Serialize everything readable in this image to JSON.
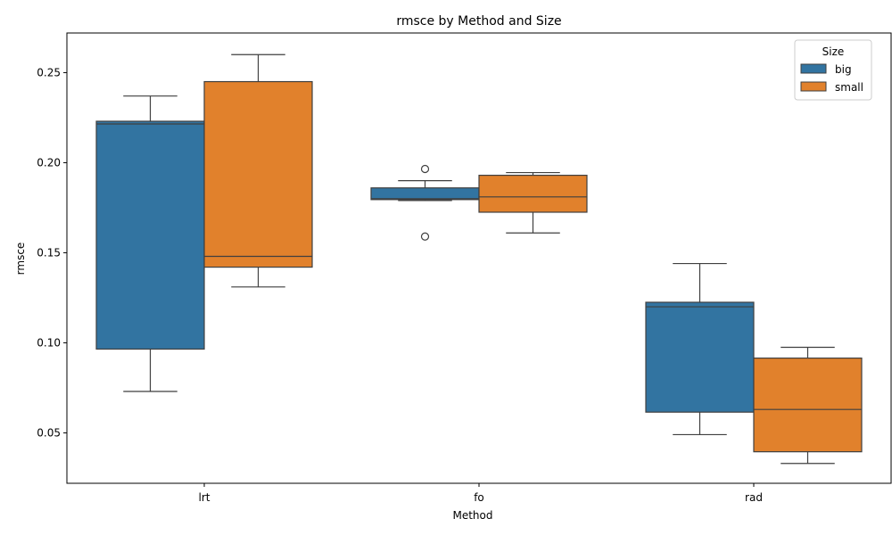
{
  "chart_data": {
    "type": "box",
    "title": "rmsce by Method and Size",
    "xlabel": "Method",
    "ylabel": "rmsce",
    "categories": [
      "lrt",
      "fo",
      "rad"
    ],
    "ylim": [
      0.022,
      0.272
    ],
    "yticks": [
      0.05,
      0.1,
      0.15,
      0.2,
      0.25
    ],
    "ytick_labels": [
      "0.05",
      "0.10",
      "0.15",
      "0.20",
      "0.25"
    ],
    "legend": {
      "title": "Size",
      "position": "top-right"
    },
    "series": [
      {
        "name": "big",
        "color": "#3274a1",
        "boxes": [
          {
            "whisker_low": 0.073,
            "q1": 0.0965,
            "median": 0.2215,
            "q3": 0.223,
            "whisker_high": 0.237,
            "outliers": []
          },
          {
            "whisker_low": 0.179,
            "q1": 0.1795,
            "median": 0.18,
            "q3": 0.186,
            "whisker_high": 0.19,
            "outliers": [
              0.1965,
              0.159
            ]
          },
          {
            "whisker_low": 0.049,
            "q1": 0.0615,
            "median": 0.12,
            "q3": 0.1225,
            "whisker_high": 0.144,
            "outliers": []
          }
        ]
      },
      {
        "name": "small",
        "color": "#e1812c",
        "boxes": [
          {
            "whisker_low": 0.131,
            "q1": 0.142,
            "median": 0.148,
            "q3": 0.245,
            "whisker_high": 0.26,
            "outliers": []
          },
          {
            "whisker_low": 0.161,
            "q1": 0.1725,
            "median": 0.181,
            "q3": 0.193,
            "whisker_high": 0.1945,
            "outliers": []
          },
          {
            "whisker_low": 0.033,
            "q1": 0.0395,
            "median": 0.063,
            "q3": 0.0915,
            "whisker_high": 0.0975,
            "outliers": []
          }
        ]
      }
    ]
  }
}
